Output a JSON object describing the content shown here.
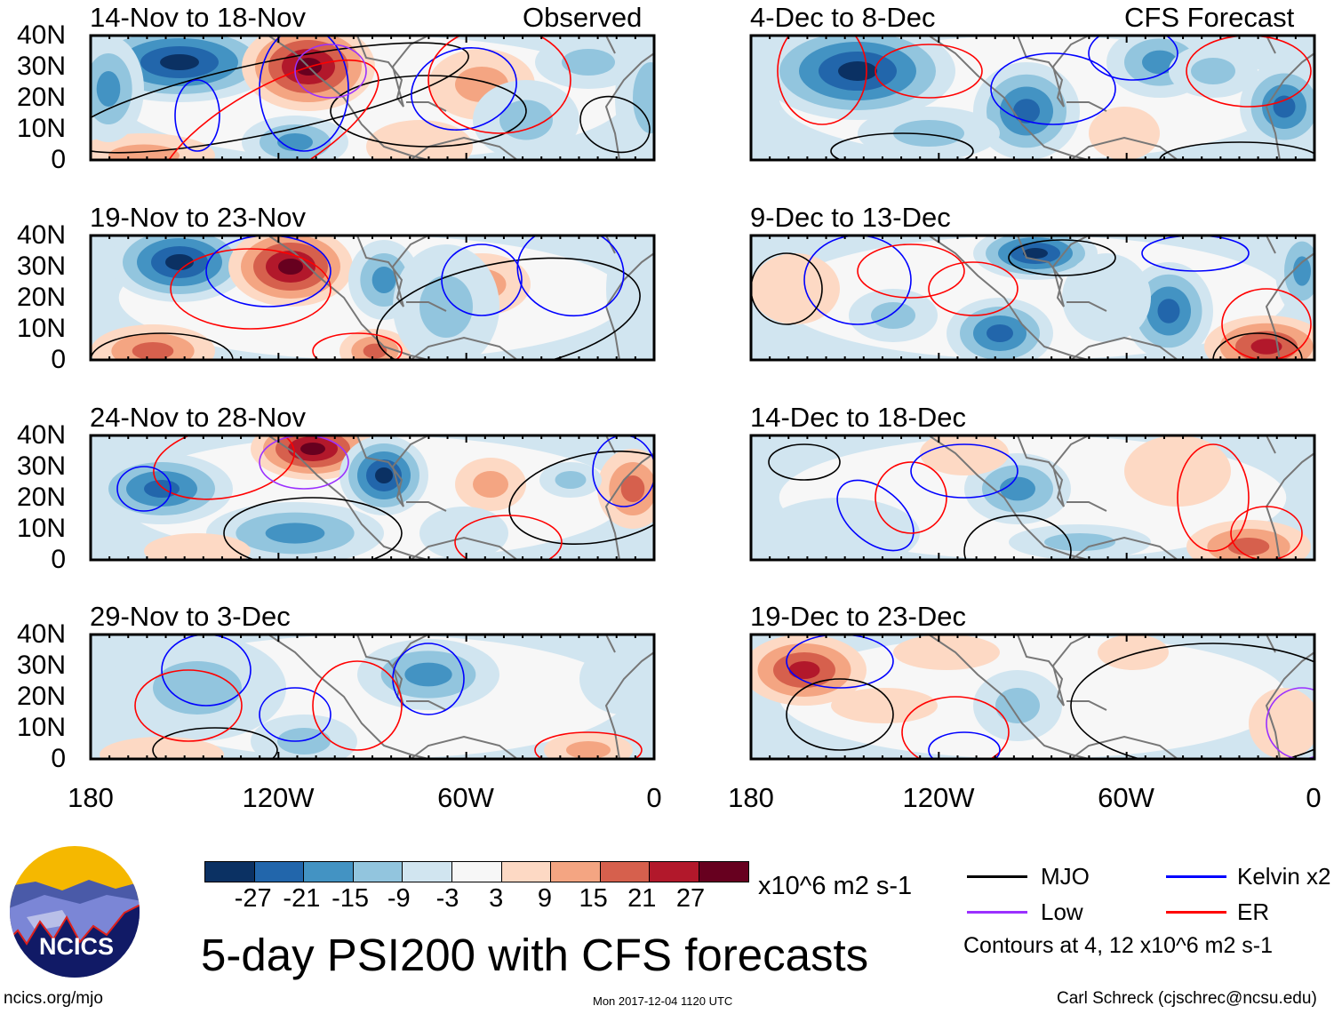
{
  "title": "5-day PSI200 with CFS forecasts",
  "observed_label": "Observed",
  "forecast_label": "CFS Forecast",
  "panels": [
    {
      "label": "14-Nov to 18-Nov",
      "group": "Observed"
    },
    {
      "label": "19-Nov to 23-Nov",
      "group": "Observed"
    },
    {
      "label": "24-Nov to 28-Nov",
      "group": "Observed"
    },
    {
      "label": "29-Nov to 3-Dec",
      "group": "Observed"
    },
    {
      "label": "4-Dec to 8-Dec",
      "group": "CFS Forecast"
    },
    {
      "label": "9-Dec to 13-Dec",
      "group": "CFS Forecast"
    },
    {
      "label": "14-Dec to 18-Dec",
      "group": "CFS Forecast"
    },
    {
      "label": "19-Dec to 23-Dec",
      "group": "CFS Forecast"
    }
  ],
  "chart_data": {
    "type": "heatmap",
    "title": "5-day PSI200 with CFS forecasts",
    "variable": "PSI200 anomaly",
    "units": "x10^6 m2 s-1",
    "lat_ticks": [
      "40N",
      "30N",
      "20N",
      "10N",
      "0"
    ],
    "lon_ticks": [
      "180",
      "120W",
      "60W",
      "0"
    ],
    "colorbar": {
      "levels": [
        "-27",
        "-21",
        "-15",
        "-9",
        "-3",
        "3",
        "9",
        "15",
        "21",
        "27"
      ],
      "colors": [
        "#0b3163",
        "#2266ab",
        "#4393c3",
        "#92c5de",
        "#d1e5f0",
        "#f7f7f7",
        "#fdd9c4",
        "#f4a582",
        "#d6604d",
        "#b2182b",
        "#67001f"
      ]
    },
    "contours_label": "Contours at 4, 12 x10^6 m2 s-1",
    "legend": [
      {
        "name": "MJO",
        "color": "#000000"
      },
      {
        "name": "Kelvin x2",
        "color": "#0000ff"
      },
      {
        "name": "Low",
        "color": "#9b30ff"
      },
      {
        "name": "ER",
        "color": "#ff0000"
      }
    ]
  },
  "footer": {
    "url": "ncics.org/mjo",
    "timestamp": "Mon 2017-12-04 1120 UTC",
    "credit": "Carl Schreck (cjschrec@ncsu.edu)"
  },
  "logo": {
    "text": "NCICS"
  }
}
